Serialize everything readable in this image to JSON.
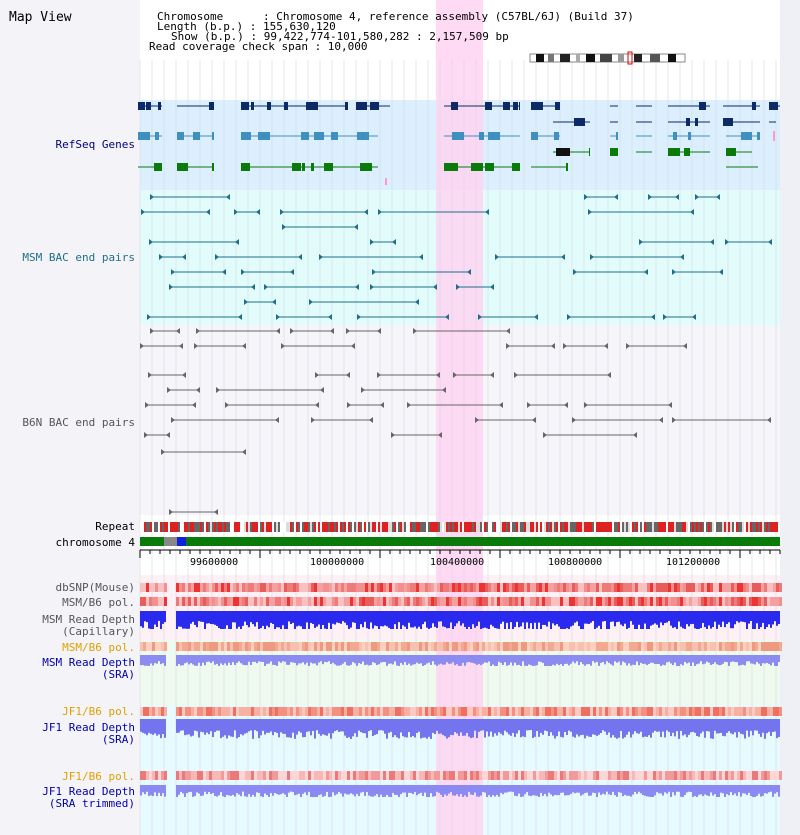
{
  "view_title": "Map View",
  "info": {
    "chromosome": "Chromosome      : Chromosome 4, reference assembly (C57BL/6J) (Build 37)",
    "length": "Length (b.p.) : 155,630,120",
    "show": "Show (b.p.) : 99,422,774-101,580,282 : 2,157,509 bp",
    "coverage": "Read coverage check span : 10,000"
  },
  "tracks": {
    "refseq": "RefSeq Genes",
    "msm_bac": "MSM BAC end pairs",
    "b6n_bac": "B6N BAC end pairs",
    "repeat": "Repeat",
    "chromosome": "chromosome 4",
    "dbsnp": "dbSNP(Mouse)",
    "msm_b6_pol": "MSM/B6 pol.",
    "msm_depth_cap_1": "MSM Read Depth",
    "msm_depth_cap_2": "(Capillary)",
    "msm_b6_pol_sra": "MSM/B6 pol.",
    "msm_depth_sra_1": "MSM Read Depth",
    "msm_depth_sra_2": "(SRA)",
    "jf1_b6_pol": "JF1/B6 pol.",
    "jf1_depth_1": "JF1 Read Depth",
    "jf1_depth_2": "(SRA)",
    "jf1_b6_pol_2": "JF1/B6 pol.",
    "jf1_trim_1": "JF1 Read Depth",
    "jf1_trim_2": "(SRA trimmed)"
  },
  "axis": {
    "ticks": [
      "99600000",
      "100000000",
      "100400000",
      "100800000",
      "101200000"
    ]
  },
  "colors": {
    "refseq_bg": "#dcefff",
    "bac_bg": "#e2fcfc",
    "highlight": "#ffd4f2",
    "gene_dark": "#0e2a66",
    "gene_mid": "#3f8fbf",
    "gene_green": "#0a7a0a",
    "msm_feature": "#1f6e8c",
    "b6n_feature": "#666666",
    "label_refseq": "#00007a",
    "label_msm": "#1f6e8c",
    "label_orange": "#e0a000",
    "label_blue": "#0000aa"
  }
}
